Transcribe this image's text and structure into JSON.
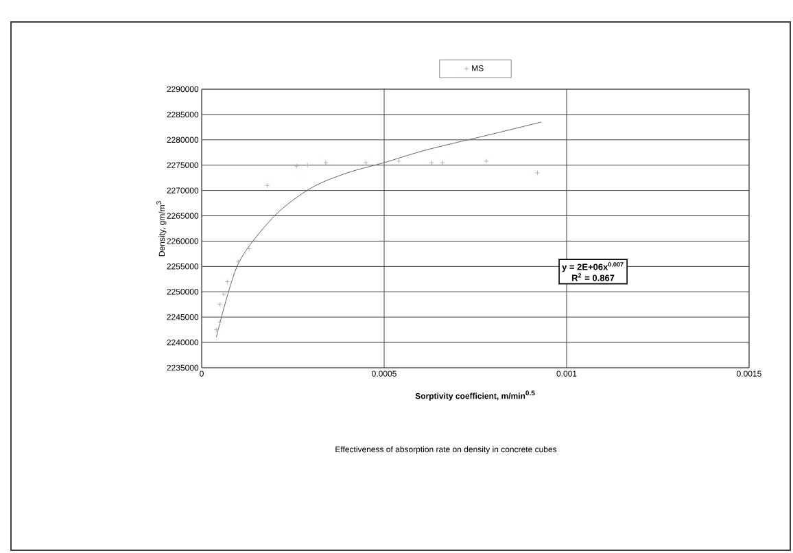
{
  "chart_data": {
    "type": "scatter",
    "xlabel": "Sorptivity coefficient, m/min$^{0.5}$",
    "ylabel": "Density, gm/m$^{3}$",
    "annotations": [
      "y = 2E+06x$^{0.007}$",
      "R$^{2}$ = 0.867",
      "Effectiveness of absorption rate on density in  concrete cubes"
    ],
    "series": [
      {
        "name": "MS",
        "color": "#8fa8c8",
        "marker": "cross",
        "x": [
          4e-05,
          5e-05,
          5e-05,
          6e-05,
          7e-05,
          0.0001,
          0.00013,
          0.00018,
          0.00026,
          0.00029,
          0.00034,
          0.00045,
          0.00054,
          0.00063,
          0.00066,
          0.00078,
          0.00092
        ],
        "values": [
          2242500,
          2244000,
          2247500,
          2249500,
          2252000,
          2256000,
          2258500,
          2271000,
          2274800,
          2275000,
          2275500,
          2275500,
          2275800,
          2275500,
          2275500,
          2275800,
          2273500
        ]
      },
      {
        "type": "line",
        "color": "#606060",
        "marker": "none",
        "x": [
          4e-05,
          0.0001,
          0.0002,
          0.0003,
          0.0004,
          0.0005,
          0.0006,
          0.0007,
          0.0008,
          0.00093
        ],
        "values": [
          2241000,
          2255500,
          2265000,
          2270500,
          2273500,
          2275500,
          2277700,
          2279500,
          2281200,
          2283500
        ]
      }
    ],
    "xlim": [
      0,
      0.0015
    ],
    "xticks": [
      0,
      0.0005,
      0.001,
      0.0015
    ],
    "ylim": [
      2235000,
      2290000
    ],
    "yticks": [
      2235000,
      2240000,
      2245000,
      2250000,
      2255000,
      2260000,
      2265000,
      2270000,
      2275000,
      2280000,
      2285000,
      2290000
    ],
    "grid": true,
    "legend": "top"
  }
}
